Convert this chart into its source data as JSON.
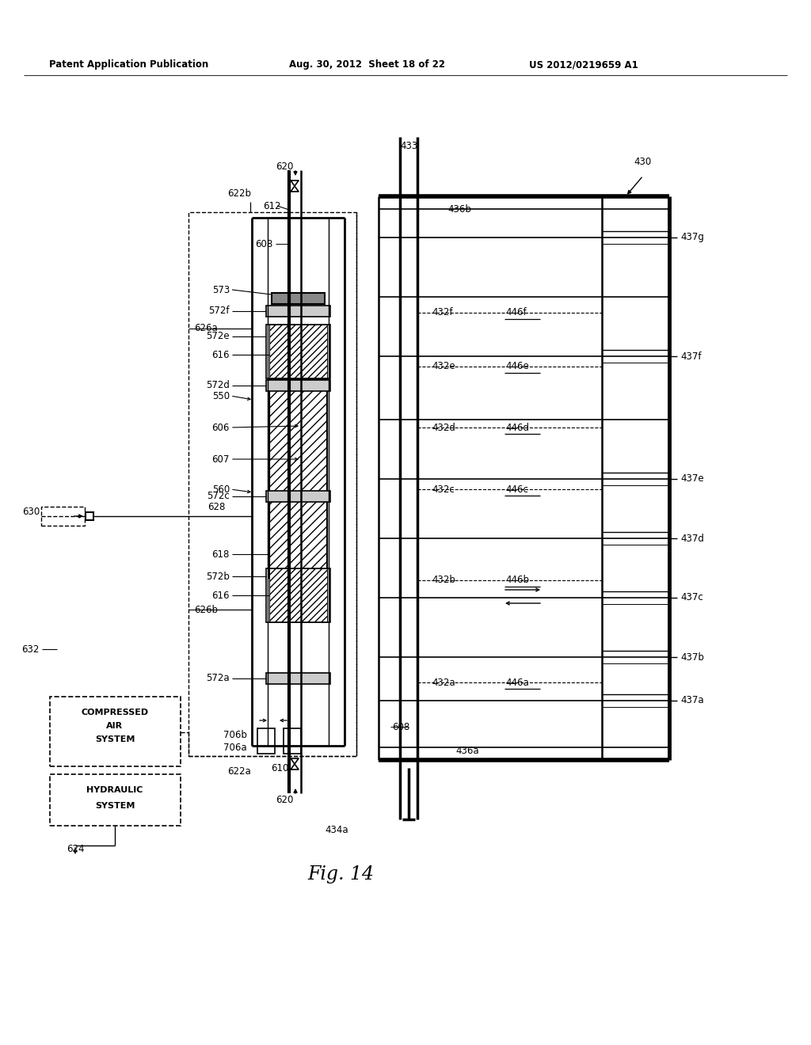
{
  "bg": "#ffffff",
  "lc": "#000000",
  "header_left": "Patent Application Publication",
  "header_mid": "Aug. 30, 2012  Sheet 18 of 22",
  "header_right": "US 2012/0219659 A1",
  "fig_caption": "Fig. 14"
}
